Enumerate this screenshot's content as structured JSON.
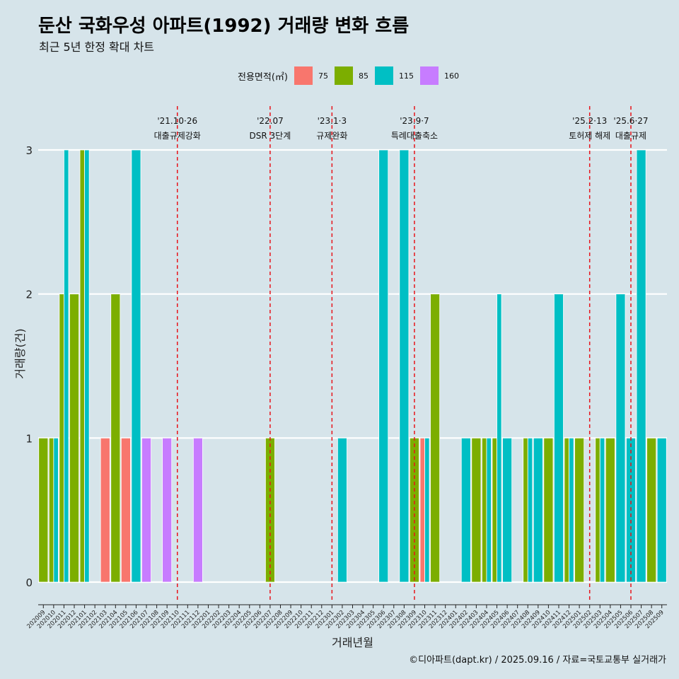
{
  "title": "둔산 국화우성 아파트(1992) 거래량 변화 흐름",
  "subtitle": "최근 5년 한정 확대 차트",
  "caption": "©디아파트(dapt.kr) / 2025.09.16 / 자료=국토교통부 실거래가",
  "legend": {
    "title": "전용면적(㎡)",
    "items": [
      {
        "label": "75",
        "color": "#F8766D"
      },
      {
        "label": "85",
        "color": "#7CAE00"
      },
      {
        "label": "115",
        "color": "#00BFC4"
      },
      {
        "label": "160",
        "color": "#C77CFF"
      }
    ]
  },
  "chart_data": {
    "type": "bar",
    "xlabel": "거래년월",
    "ylabel": "거래량(건)",
    "ylim": [
      0,
      3
    ],
    "yticks": [
      0,
      1,
      2,
      3
    ],
    "grid": true,
    "legend_position": "top",
    "categories": [
      "202009",
      "202010",
      "202011",
      "202012",
      "202101",
      "202102",
      "202103",
      "202104",
      "202105",
      "202106",
      "202107",
      "202108",
      "202109",
      "202110",
      "202111",
      "202112",
      "202201",
      "202202",
      "202203",
      "202204",
      "202205",
      "202206",
      "202207",
      "202208",
      "202209",
      "202210",
      "202211",
      "202212",
      "202301",
      "202302",
      "202303",
      "202304",
      "202305",
      "202306",
      "202307",
      "202308",
      "202309",
      "202310",
      "202311",
      "202312",
      "202401",
      "202402",
      "202403",
      "202404",
      "202405",
      "202406",
      "202407",
      "202408",
      "202409",
      "202410",
      "202411",
      "202412",
      "202501",
      "202502",
      "202503",
      "202504",
      "202505",
      "202506",
      "202507",
      "202508",
      "202509"
    ],
    "series": [
      {
        "name": "75",
        "color": "#F8766D",
        "values": [
          0,
          0,
          0,
          0,
          0,
          0,
          1,
          0,
          1,
          0,
          0,
          0,
          0,
          0,
          0,
          0,
          0,
          0,
          0,
          0,
          0,
          0,
          0,
          0,
          0,
          0,
          0,
          0,
          0,
          0,
          0,
          0,
          0,
          0,
          0,
          0,
          0,
          1,
          0,
          0,
          0,
          0,
          0,
          0,
          0,
          0,
          0,
          0,
          0,
          0,
          0,
          0,
          0,
          0,
          0,
          0,
          0,
          0,
          0,
          0,
          0
        ]
      },
      {
        "name": "85",
        "color": "#7CAE00",
        "values": [
          1,
          1,
          2,
          2,
          3,
          0,
          0,
          2,
          0,
          0,
          0,
          0,
          0,
          0,
          0,
          0,
          0,
          0,
          0,
          0,
          0,
          0,
          1,
          0,
          0,
          0,
          0,
          0,
          0,
          0,
          0,
          0,
          0,
          0,
          0,
          0,
          1,
          0,
          2,
          0,
          0,
          0,
          1,
          1,
          1,
          0,
          0,
          1,
          0,
          1,
          0,
          1,
          1,
          0,
          1,
          1,
          0,
          0,
          0,
          1,
          0
        ]
      },
      {
        "name": "115",
        "color": "#00BFC4",
        "values": [
          0,
          1,
          3,
          0,
          3,
          0,
          0,
          0,
          0,
          3,
          0,
          0,
          0,
          0,
          0,
          0,
          0,
          0,
          0,
          0,
          0,
          0,
          0,
          0,
          0,
          0,
          0,
          0,
          0,
          1,
          0,
          0,
          0,
          3,
          0,
          3,
          0,
          1,
          0,
          0,
          0,
          1,
          0,
          1,
          2,
          1,
          0,
          1,
          1,
          0,
          2,
          1,
          0,
          0,
          1,
          0,
          2,
          1,
          3,
          0,
          1
        ]
      },
      {
        "name": "160",
        "color": "#C77CFF",
        "values": [
          0,
          0,
          0,
          0,
          0,
          0,
          0,
          0,
          0,
          0,
          1,
          0,
          1,
          0,
          0,
          1,
          0,
          0,
          0,
          0,
          0,
          0,
          0,
          0,
          0,
          0,
          0,
          0,
          0,
          0,
          0,
          0,
          0,
          0,
          0,
          0,
          0,
          0,
          0,
          0,
          0,
          0,
          0,
          0,
          0,
          0,
          0,
          0,
          0,
          0,
          0,
          0,
          0,
          0,
          0,
          0,
          0,
          0,
          0,
          0,
          0
        ]
      }
    ],
    "annotations": [
      {
        "x": "202110",
        "line1": "'21.10·26",
        "line2": "대출규제강화"
      },
      {
        "x": "202207",
        "line1": "'22.07",
        "line2": "DSR 3단계"
      },
      {
        "x": "202301",
        "line1": "'23.1·3",
        "line2": "규제완화"
      },
      {
        "x": "202309",
        "line1": "'23.9·7",
        "line2": "특례대출축소"
      },
      {
        "x": "202502",
        "line1": "'25.2·13",
        "line2": "토허제 해제"
      },
      {
        "x": "202506",
        "line1": "'25.6·27",
        "line2": "대출규제"
      }
    ]
  }
}
